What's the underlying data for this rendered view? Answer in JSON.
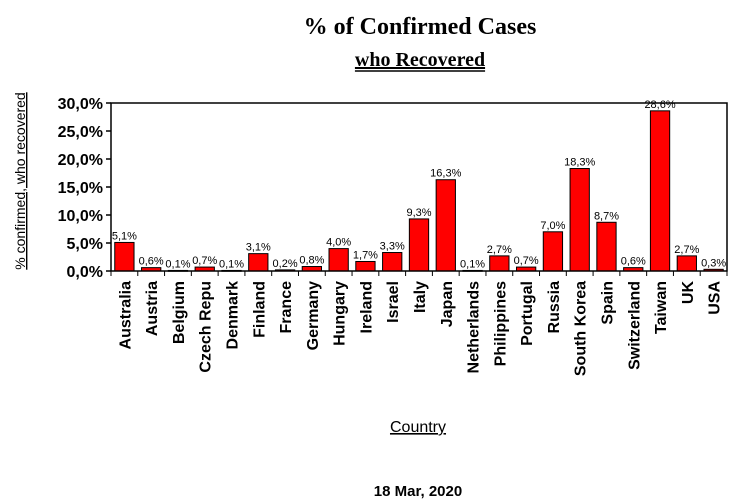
{
  "chart_data": {
    "type": "bar",
    "title": "% of Confirmed Cases",
    "subtitle": "who Recovered",
    "xlabel": "Country",
    "ylabel": "% confirmed, who recovered",
    "footer": "18 Mar, 2020",
    "ylim": [
      0,
      30
    ],
    "yticks": [
      0,
      5,
      10,
      15,
      20,
      25,
      30
    ],
    "ytick_labels": [
      "0,0%",
      "5,0%",
      "10,0%",
      "15,0%",
      "20,0%",
      "25,0%",
      "30,0%"
    ],
    "grid": false,
    "legend": "none",
    "bar_color": "#ff0000",
    "categories": [
      "Australia",
      "Austria",
      "Belgium",
      "Czech Repu",
      "Denmark",
      "Finland",
      "France",
      "Germany",
      "Hungary",
      "Ireland",
      "Israel",
      "Italy",
      "Japan",
      "Netherlands",
      "Philippines",
      "Portugal",
      "Russia",
      "South Korea",
      "Spain",
      "Switzerland",
      "Taiwan",
      "UK",
      "USA"
    ],
    "values": [
      5.1,
      0.6,
      0.1,
      0.7,
      0.1,
      3.1,
      0.2,
      0.8,
      4.0,
      1.7,
      3.3,
      9.3,
      16.3,
      0.1,
      2.7,
      0.7,
      7.0,
      18.3,
      8.7,
      0.6,
      28.6,
      2.7,
      0.3
    ],
    "data_labels": [
      "5,1%",
      "0,6%",
      "0,1%",
      "0,7%",
      "0,1%",
      "3,1%",
      "0,2%",
      "0,8%",
      "4,0%",
      "1,7%",
      "3,3%",
      "9,3%",
      "16,3%",
      "0,1%",
      "2,7%",
      "0,7%",
      "7,0%",
      "18,3%",
      "8,7%",
      "0,6%",
      "28,6%",
      "2,7%",
      "0,3%"
    ]
  }
}
